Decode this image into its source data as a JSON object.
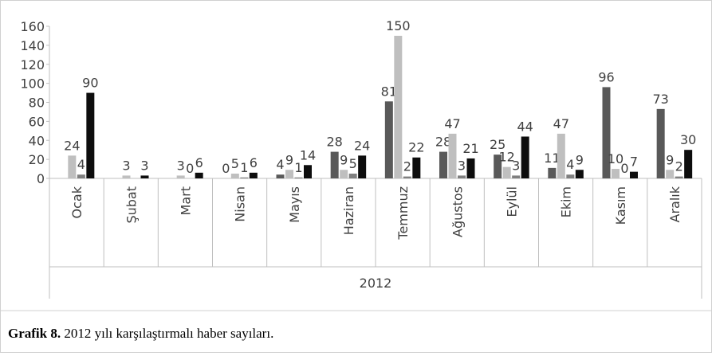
{
  "chart_data": {
    "type": "bar",
    "categories": [
      "Ocak",
      "Şubat",
      "Mart",
      "Nisan",
      "Mayıs",
      "Haziran",
      "Temmuz",
      "Ağustos",
      "Eylül",
      "Ekim",
      "Kasım",
      "Aralık"
    ],
    "group_label": "2012",
    "series": [
      {
        "color": "#595959",
        "values": [
          null,
          null,
          null,
          0,
          4,
          28,
          81,
          28,
          25,
          11,
          96,
          73
        ]
      },
      {
        "color": "#bfbfbf",
        "values": [
          24,
          3,
          3,
          5,
          9,
          9,
          150,
          47,
          12,
          47,
          10,
          9
        ]
      },
      {
        "color": "#7f7f7f",
        "values": [
          4,
          null,
          0,
          1,
          1,
          5,
          2,
          3,
          3,
          4,
          0,
          2
        ]
      },
      {
        "color": "#0d0d0d",
        "values": [
          90,
          3,
          6,
          6,
          14,
          24,
          22,
          21,
          44,
          9,
          7,
          30
        ]
      }
    ],
    "ylim": [
      0,
      160
    ],
    "yticks": [
      0,
      20,
      40,
      60,
      80,
      100,
      120,
      140,
      160
    ],
    "caption": {
      "label": "Grafik 8.",
      "text": " 2012 yılı karşılaştırmalı haber sayıları."
    }
  }
}
